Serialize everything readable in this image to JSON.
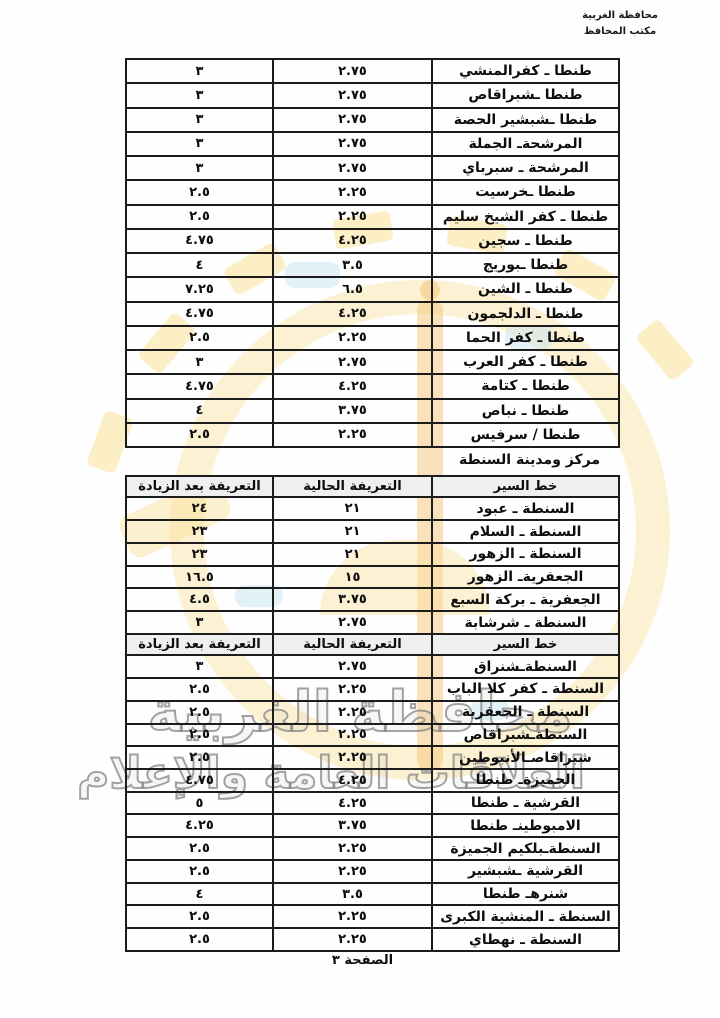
{
  "letterhead": {
    "line1": "محافظة الغربية",
    "line2": "مكتب المحافظ"
  },
  "watermark": {
    "line1": "محافظة الغربية",
    "line2": "العلاقات العامة والإعلام",
    "emblem_yellow": "#fae39d",
    "emblem_orange": "#f3c378",
    "emblem_blue": "#c7e5f3",
    "outline_gray": "#8c8c8c"
  },
  "columns": {
    "route": "خط السير",
    "current": "التعريفة الحالية",
    "after": "التعريفة بعد الزيادة"
  },
  "table1": {
    "rows": [
      {
        "route": "طنطا ـ كفرالمنشي",
        "current": "٢.٧٥",
        "after": "٣"
      },
      {
        "route": "طنطا ـشبراقاص",
        "current": "٢.٧٥",
        "after": "٣"
      },
      {
        "route": "طنطا ـشبشير الحصة",
        "current": "٢.٧٥",
        "after": "٣"
      },
      {
        "route": "المرشحةـ الجملة",
        "current": "٢.٧٥",
        "after": "٣"
      },
      {
        "route": "المرشحة ـ سبرباي",
        "current": "٢.٧٥",
        "after": "٣"
      },
      {
        "route": "طنطا ـخرسيت",
        "current": "٢.٢٥",
        "after": "٢.٥"
      },
      {
        "route": "طنطا ـ كفر الشيخ سليم",
        "current": "٢.٢٥",
        "after": "٢.٥"
      },
      {
        "route": "طنطا ـ سجين",
        "current": "٤.٢٥",
        "after": "٤.٧٥"
      },
      {
        "route": "طنطا ـبوريج",
        "current": "٣.٥",
        "after": "٤"
      },
      {
        "route": "طنطا ـ الشين",
        "current": "٦.٥",
        "after": "٧.٢٥"
      },
      {
        "route": "طنطا ـ الدلجمون",
        "current": "٤.٢٥",
        "after": "٤.٧٥"
      },
      {
        "route": "طنطا ـ كفر الحما",
        "current": "٢.٢٥",
        "after": "٢.٥"
      },
      {
        "route": "طنطا ـ كفر العرب",
        "current": "٢.٧٥",
        "after": "٣"
      },
      {
        "route": "طنطا ـ كتامة",
        "current": "٤.٢٥",
        "after": "٤.٧٥"
      },
      {
        "route": "طنطا ـ نباص",
        "current": "٣.٧٥",
        "after": "٤"
      },
      {
        "route": "طنطا / سرفيس",
        "current": "٢.٢٥",
        "after": "٢.٥"
      }
    ]
  },
  "section2": {
    "title": "مركز ومدينة السنطة"
  },
  "table2a": {
    "has_header": true,
    "rows": [
      {
        "route": "السنطة ـ عبود",
        "current": "٢١",
        "after": "٢٤"
      },
      {
        "route": "السنطة ـ السلام",
        "current": "٢١",
        "after": "٢٣"
      },
      {
        "route": "السنطة ـ الزهور",
        "current": "٢١",
        "after": "٢٣"
      },
      {
        "route": "الجعفريةـ الزهور",
        "current": "١٥",
        "after": "١٦.٥"
      },
      {
        "route": "الجعفرية ـ بركة السبع",
        "current": "٣.٧٥",
        "after": "٤.٥"
      },
      {
        "route": "السنطة ـ شرشابة",
        "current": "٢.٧٥",
        "after": "٣"
      }
    ]
  },
  "table2b": {
    "has_header": true,
    "rows": [
      {
        "route": "السنطةـشنراق",
        "current": "٢.٧٥",
        "after": "٣"
      },
      {
        "route": "السنطة ـ كفر كلا الباب",
        "current": "٢.٢٥",
        "after": "٢.٥"
      },
      {
        "route": "السنطة ـ الجعفرية",
        "current": "٢.٢٥",
        "after": "٢.٥"
      },
      {
        "route": "السنطةـشبراقاص",
        "current": "٢.٢٥",
        "after": "٢.٥"
      },
      {
        "route": "شبراقاصـالأنبوطين",
        "current": "٢.٢٥",
        "after": "٢.٥"
      },
      {
        "route": "الجميزةـ طنطا",
        "current": "٤.٢٥",
        "after": "٤.٧٥"
      },
      {
        "route": "القرشية ـ طنطا",
        "current": "٤.٢٥",
        "after": "٥"
      },
      {
        "route": "الامبوطينـ طنطا",
        "current": "٣.٧٥",
        "after": "٤.٢٥"
      },
      {
        "route": "السنطةـبلكيم الجميزة",
        "current": "٢.٢٥",
        "after": "٢.٥"
      },
      {
        "route": "القرشية ـشبشير",
        "current": "٢.٢٥",
        "after": "٢.٥"
      },
      {
        "route": "شنرهـ طنطا",
        "current": "٣.٥",
        "after": "٤"
      },
      {
        "route": "السنطة ـ المنشية الكبرى",
        "current": "٢.٢٥",
        "after": "٢.٥"
      },
      {
        "route": "السنطة ـ نهطاي",
        "current": "٢.٢٥",
        "after": "٢.٥"
      }
    ]
  },
  "footer": {
    "page_label": "الصفحة ٣"
  }
}
